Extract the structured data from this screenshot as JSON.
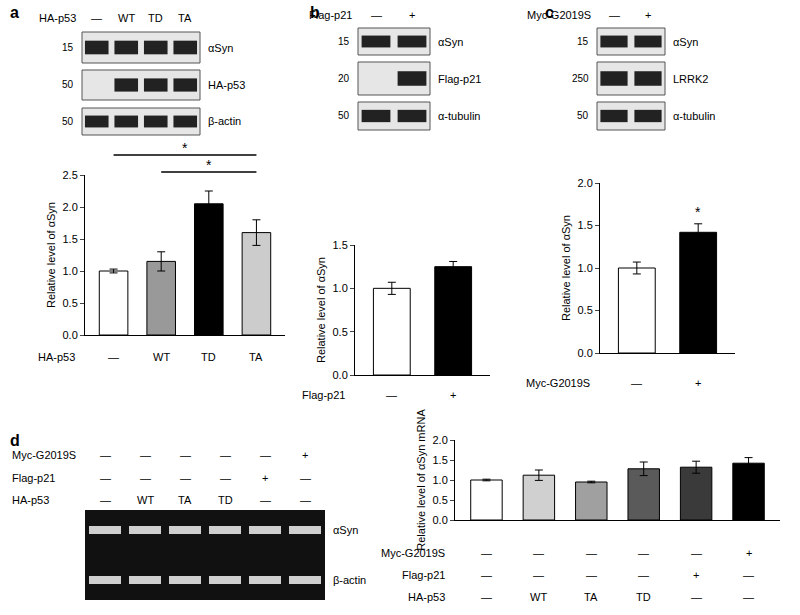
{
  "chart_data": [
    {
      "type": "bar",
      "ylabel": "Relative level of αSyn",
      "categories": [
        null,
        null,
        null,
        null
      ],
      "values": [
        1.0,
        1.15,
        2.05,
        1.6
      ],
      "errors": [
        0.03,
        0.15,
        0.2,
        0.2
      ],
      "colors": [
        "#ffffff",
        "#999999",
        "#000000",
        "#cccccc"
      ],
      "ylim": [
        0,
        2.5
      ],
      "yticks": [
        {
          "value": 0,
          "label": "0.0"
        },
        {
          "value": 0.5,
          "label": "0.5"
        },
        {
          "value": 1,
          "label": "1.0"
        },
        {
          "value": 1.5,
          "label": "1.5"
        },
        {
          "value": 2,
          "label": "2.0"
        },
        {
          "value": 2.5,
          "label": "2.5"
        }
      ],
      "condition_rows": [
        {
          "label": "HA-p53",
          "values": [
            "—",
            "WT",
            "TD",
            "TA"
          ]
        }
      ],
      "significance": [
        {
          "from": 0,
          "to": 3,
          "label": "*"
        },
        {
          "from": 1,
          "to": 3,
          "label": "*"
        }
      ]
    },
    {
      "type": "bar",
      "ylabel": "Relative level of αSyn",
      "categories": [
        null,
        null
      ],
      "values": [
        1.0,
        1.25
      ],
      "errors": [
        0.07,
        0.06
      ],
      "colors": [
        "#ffffff",
        "#000000"
      ],
      "ylim": [
        0,
        1.5
      ],
      "yticks": [
        {
          "value": 0,
          "label": "0.0"
        },
        {
          "value": 0.5,
          "label": "0.5"
        },
        {
          "value": 1,
          "label": "1.0"
        },
        {
          "value": 1.5,
          "label": "1.5"
        }
      ],
      "condition_rows": [
        {
          "label": "Flag-p21",
          "values": [
            "—",
            "+"
          ]
        }
      ]
    },
    {
      "type": "bar",
      "ylabel": "Relative level of αSyn",
      "categories": [
        null,
        null
      ],
      "values": [
        1.0,
        1.42
      ],
      "errors": [
        0.07,
        0.1
      ],
      "colors": [
        "#ffffff",
        "#000000"
      ],
      "ylim": [
        0,
        2
      ],
      "yticks": [
        {
          "value": 0,
          "label": "0.0"
        },
        {
          "value": 0.5,
          "label": "0.5"
        },
        {
          "value": 1,
          "label": "1.0"
        },
        {
          "value": 1.5,
          "label": "1.5"
        },
        {
          "value": 2,
          "label": "2.0"
        }
      ],
      "condition_rows": [
        {
          "label": "Myc-G2019S",
          "values": [
            "—",
            "+"
          ]
        }
      ],
      "significance": [
        {
          "from": 1,
          "to": 1,
          "label": "*"
        }
      ]
    },
    {
      "type": "bar",
      "ylabel": "Relative level of αSyn mRNA",
      "categories": [
        null,
        null,
        null,
        null,
        null,
        null
      ],
      "values": [
        1.0,
        1.12,
        0.95,
        1.28,
        1.32,
        1.42
      ],
      "errors": [
        0.02,
        0.13,
        0.02,
        0.17,
        0.15,
        0.14
      ],
      "colors": [
        "#ffffff",
        "#d0d0d0",
        "#a0a0a0",
        "#5a5a5a",
        "#3a3a3a",
        "#000000"
      ],
      "ylim": [
        0,
        2
      ],
      "yticks": [
        {
          "value": 0,
          "label": "0.0"
        },
        {
          "value": 0.5,
          "label": "0.5"
        },
        {
          "value": 1,
          "label": "1.0"
        },
        {
          "value": 1.5,
          "label": "1.5"
        },
        {
          "value": 2,
          "label": "2.0"
        }
      ],
      "condition_rows": [
        {
          "label": "Myc-G2019S",
          "values": [
            "—",
            "—",
            "—",
            "—",
            "—",
            "+"
          ]
        },
        {
          "label": "Flag-p21",
          "values": [
            "—",
            "—",
            "—",
            "—",
            "+",
            "—"
          ]
        },
        {
          "label": "HA-p53",
          "values": [
            "—",
            "WT",
            "TA",
            "TD",
            "—",
            "—"
          ]
        }
      ]
    }
  ],
  "blots": [
    {
      "letter": "a",
      "type": "western",
      "header": [
        {
          "label": "HA-p53",
          "values": [
            "—",
            "WT",
            "TD",
            "TA"
          ]
        }
      ],
      "rows": [
        {
          "label": "αSyn",
          "marker": 15
        },
        {
          "label": "HA-p53",
          "marker": 50
        },
        {
          "label": "β-actin",
          "marker": 50
        }
      ]
    },
    {
      "letter": "b",
      "type": "western",
      "header": [
        {
          "label": "Flag-p21",
          "values": [
            "—",
            "+"
          ]
        }
      ],
      "rows": [
        {
          "label": "αSyn",
          "marker": 15
        },
        {
          "label": "Flag-p21",
          "marker": 20
        },
        {
          "label": "α-tubulin",
          "marker": 50
        }
      ]
    },
    {
      "letter": "c",
      "type": "western",
      "header": [
        {
          "label": "Myc-G2019S",
          "values": [
            "—",
            "+"
          ]
        }
      ],
      "rows": [
        {
          "label": "αSyn",
          "marker": 15
        },
        {
          "label": "LRRK2",
          "marker": 250
        },
        {
          "label": "α-tubulin",
          "marker": 50
        }
      ]
    },
    {
      "letter": "d",
      "type": "gel",
      "header": [
        {
          "label": "Myc-G2019S",
          "values": [
            "—",
            "—",
            "—",
            "—",
            "—",
            "+"
          ]
        },
        {
          "label": "Flag-p21",
          "values": [
            "—",
            "—",
            "—",
            "—",
            "+",
            "—"
          ]
        },
        {
          "label": "HA-p53",
          "values": [
            "—",
            "WT",
            "TA",
            "TD",
            "—",
            "—"
          ]
        }
      ],
      "rows": [
        {
          "label": "αSyn"
        },
        {
          "label": "β-actin"
        }
      ]
    }
  ]
}
